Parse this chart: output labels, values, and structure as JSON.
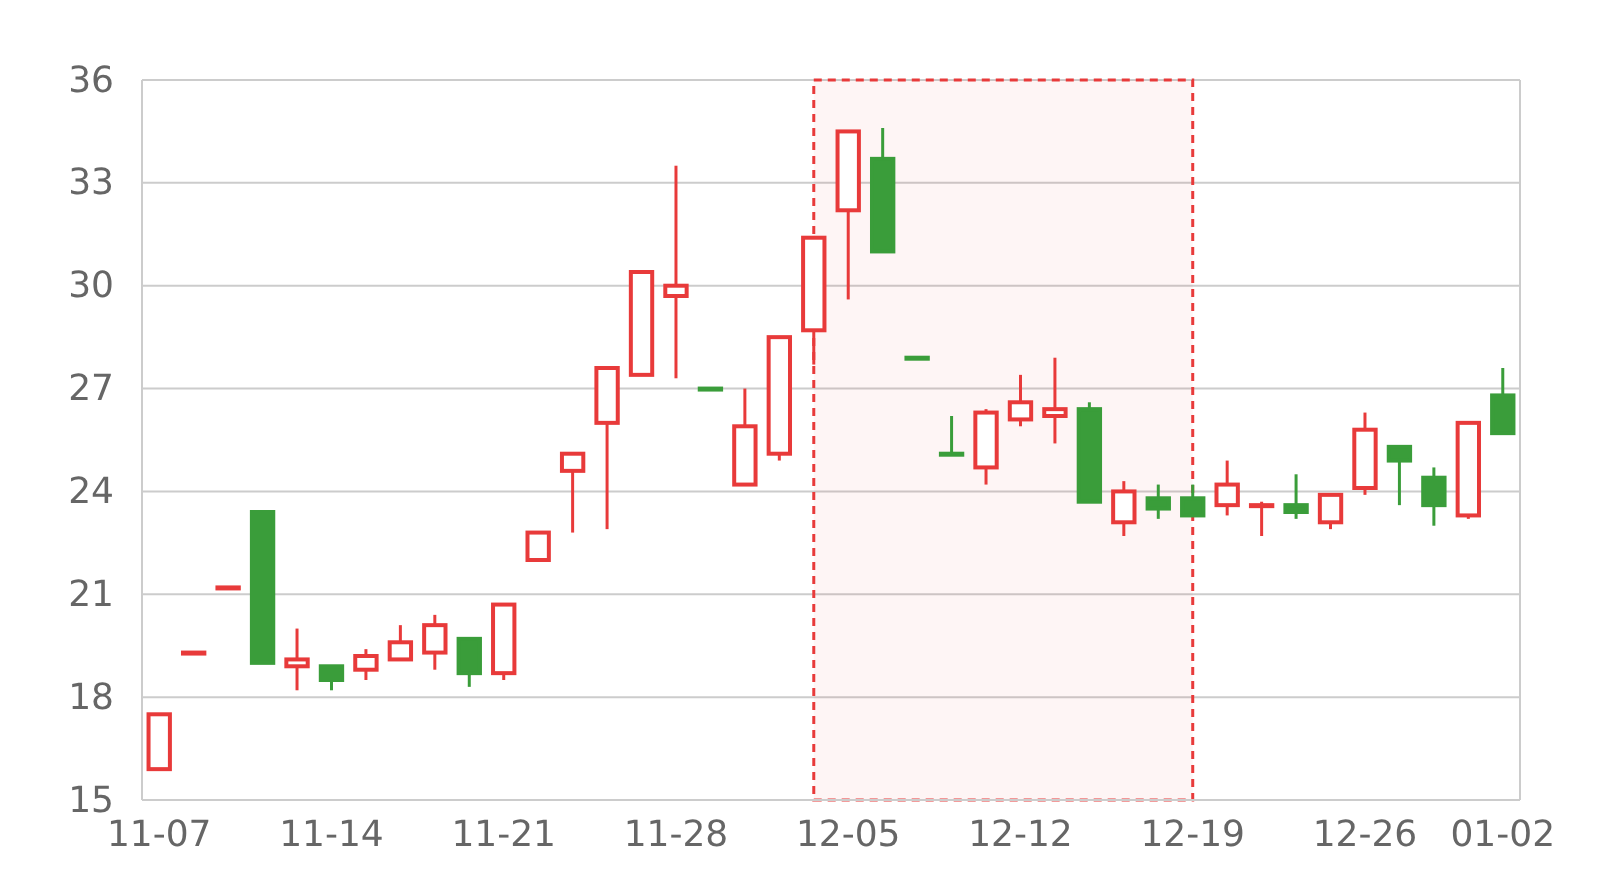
{
  "chart_data": {
    "type": "candlestick",
    "categories": [
      "11-07",
      null,
      null,
      null,
      null,
      "11-14",
      null,
      null,
      null,
      null,
      "11-21",
      null,
      null,
      null,
      null,
      "11-28",
      null,
      null,
      null,
      null,
      "12-05",
      null,
      null,
      null,
      null,
      "12-12",
      null,
      null,
      null,
      null,
      "12-19",
      null,
      null,
      null,
      null,
      "12-26",
      null,
      null,
      null,
      "01-02"
    ],
    "ohlc": [
      [
        15.9,
        17.5,
        15.9,
        17.5
      ],
      [
        19.3,
        19.3,
        19.3,
        19.3
      ],
      [
        21.2,
        21.2,
        21.2,
        21.2
      ],
      [
        23.4,
        23.4,
        19.0,
        19.0
      ],
      [
        18.9,
        20.0,
        18.2,
        19.1
      ],
      [
        18.9,
        18.9,
        18.2,
        18.5
      ],
      [
        18.8,
        19.4,
        18.5,
        19.2
      ],
      [
        19.1,
        20.1,
        19.1,
        19.6
      ],
      [
        19.3,
        20.4,
        18.8,
        20.1
      ],
      [
        19.7,
        19.7,
        18.3,
        18.7
      ],
      [
        18.7,
        20.7,
        18.5,
        20.7
      ],
      [
        22.0,
        22.8,
        22.0,
        22.8
      ],
      [
        24.6,
        25.1,
        22.8,
        25.1
      ],
      [
        26.0,
        27.6,
        22.9,
        27.6
      ],
      [
        27.4,
        30.4,
        27.4,
        30.4
      ],
      [
        29.7,
        33.5,
        27.3,
        30.0
      ],
      [
        27.0,
        27.0,
        27.0,
        27.0
      ],
      [
        24.2,
        27.0,
        24.2,
        25.9
      ],
      [
        25.1,
        28.5,
        24.9,
        28.5
      ],
      [
        28.7,
        31.4,
        27.7,
        31.4
      ],
      [
        32.2,
        34.5,
        29.6,
        34.5
      ],
      [
        33.7,
        34.6,
        31.0,
        31.0
      ],
      [
        27.9,
        27.9,
        27.9,
        27.9
      ],
      [
        25.1,
        26.2,
        25.1,
        25.1
      ],
      [
        24.7,
        26.4,
        24.2,
        26.3
      ],
      [
        26.1,
        27.4,
        25.9,
        26.6
      ],
      [
        26.2,
        27.9,
        25.4,
        26.4
      ],
      [
        26.4,
        26.6,
        23.7,
        23.7
      ],
      [
        23.1,
        24.3,
        22.7,
        24.0
      ],
      [
        23.8,
        24.2,
        23.2,
        23.5
      ],
      [
        23.8,
        24.2,
        23.3,
        23.3
      ],
      [
        23.6,
        24.9,
        23.3,
        24.2
      ],
      [
        23.6,
        23.7,
        22.7,
        23.6
      ],
      [
        23.6,
        24.5,
        23.2,
        23.4
      ],
      [
        23.1,
        23.9,
        22.9,
        23.9
      ],
      [
        24.1,
        26.3,
        23.9,
        25.8
      ],
      [
        25.3,
        25.3,
        23.6,
        24.9
      ],
      [
        24.4,
        24.7,
        23.0,
        23.6
      ],
      [
        23.3,
        26.0,
        23.2,
        26.0
      ],
      [
        26.8,
        27.6,
        25.7,
        25.7
      ]
    ],
    "colors": [
      "#e83a3a",
      "#e83a3a",
      "#e83a3a",
      "#3a9d3a",
      "#e83a3a",
      "#3a9d3a",
      "#e83a3a",
      "#e83a3a",
      "#e83a3a",
      "#3a9d3a",
      "#e83a3a",
      "#e83a3a",
      "#e83a3a",
      "#e83a3a",
      "#e83a3a",
      "#e83a3a",
      "#3a9d3a",
      "#e83a3a",
      "#e83a3a",
      "#e83a3a",
      "#e83a3a",
      "#3a9d3a",
      "#3a9d3a",
      "#3a9d3a",
      "#e83a3a",
      "#e83a3a",
      "#e83a3a",
      "#3a9d3a",
      "#e83a3a",
      "#3a9d3a",
      "#3a9d3a",
      "#e83a3a",
      "#e83a3a",
      "#3a9d3a",
      "#e83a3a",
      "#e83a3a",
      "#3a9d3a",
      "#3a9d3a",
      "#e83a3a",
      "#3a9d3a"
    ],
    "ylim": [
      15,
      36
    ],
    "yticks": [
      15,
      18,
      21,
      24,
      27,
      30,
      33,
      36
    ],
    "grid": "y"
  }
}
